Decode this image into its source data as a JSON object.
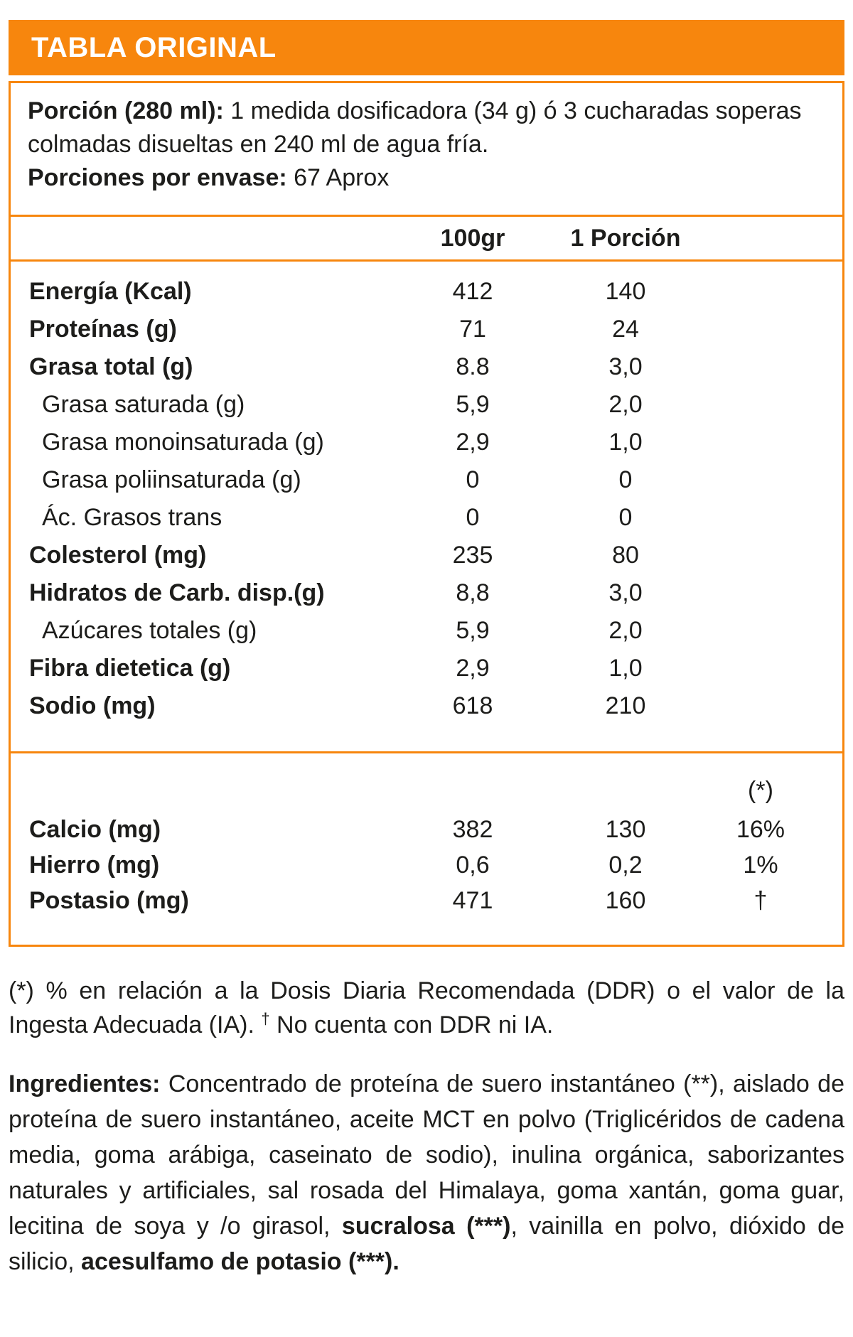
{
  "colors": {
    "accent": "#F7860D",
    "text": "#1D1D1B"
  },
  "header": {
    "title": "TABLA ORIGINAL"
  },
  "serving": {
    "portion_label": "Porción (280 ml):",
    "portion_text": " 1 medida dosificadora (34 g) ó 3 cucharadas soperas colmadas disueltas en 240 ml de agua fría.",
    "servings_label": "Porciones por envase:",
    "servings_value": " 67 Aprox"
  },
  "table": {
    "col_per100": "100gr",
    "col_serving": "1 Porción",
    "ddr_header": "(*)",
    "rows": [
      {
        "label": "Energía (Kcal)",
        "per100": "412",
        "serving": "140"
      },
      {
        "label": "Proteínas (g)",
        "per100": "71",
        "serving": "24"
      },
      {
        "label": "Grasa total (g)",
        "per100": "8.8",
        "serving": "3,0"
      },
      {
        "label": "Grasa saturada (g)",
        "per100": "5,9",
        "serving": "2,0"
      },
      {
        "label": "Grasa monoinsaturada (g)",
        "per100": "2,9",
        "serving": "1,0"
      },
      {
        "label": "Grasa poliinsaturada (g)",
        "per100": "0",
        "serving": "0"
      },
      {
        "label": "Ác. Grasos trans",
        "per100": "0",
        "serving": "0"
      },
      {
        "label": "Colesterol (mg)",
        "per100": "235",
        "serving": "80"
      },
      {
        "label": "Hidratos de Carb. disp.(g)",
        "per100": "8,8",
        "serving": "3,0"
      },
      {
        "label": "Azúcares totales (g)",
        "per100": "5,9",
        "serving": "2,0"
      },
      {
        "label": "Fibra dietetica (g)",
        "per100": "2,9",
        "serving": "1,0"
      },
      {
        "label": "Sodio (mg)",
        "per100": "618",
        "serving": "210"
      }
    ],
    "minerals": [
      {
        "label": "Calcio (mg)",
        "per100": "382",
        "serving": "130",
        "ddr": "16%"
      },
      {
        "label": "Hierro (mg)",
        "per100": "0,6",
        "serving": "0,2",
        "ddr": "1%"
      },
      {
        "label": "Postasio (mg)",
        "per100": "471",
        "serving": "160",
        "ddr": "†"
      }
    ]
  },
  "footnote": {
    "part1": "(*) % en relación a la Dosis Diaria Recomendada (DDR) o el valor de la Ingesta Adecuada (IA).",
    "dagger": "†",
    "part2": " No cuenta con DDR ni IA."
  },
  "ingredients": {
    "label": "Ingredientes:",
    "part1": " Concentrado de proteína de suero instantáneo (**), aislado de proteína de suero instantáneo, aceite MCT en polvo (Triglicéridos de cadena media, goma arábiga, caseinato de sodio), inulina orgánica, saborizantes naturales y artificiales, sal rosada del Himalaya, goma xantán, goma guar, lecitina de soya y /o girasol, ",
    "bold1": "sucralosa (***)",
    "part2": ", vainilla en polvo, dióxido de silicio, ",
    "bold2": "acesulfamo de potasio (***)."
  }
}
